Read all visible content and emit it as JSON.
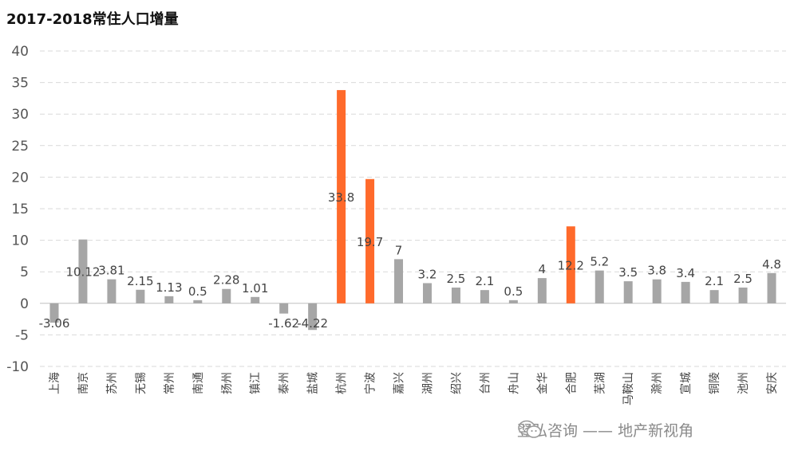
{
  "chart_data": {
    "type": "bar",
    "title": "2017-2018常住人口增量",
    "categories": [
      "上海",
      "南京",
      "苏州",
      "无锡",
      "常州",
      "南通",
      "扬州",
      "镇江",
      "泰州",
      "盐城",
      "杭州",
      "宁波",
      "嘉兴",
      "湖州",
      "绍兴",
      "台州",
      "舟山",
      "金华",
      "合肥",
      "芜湖",
      "马鞍山",
      "滁州",
      "宣城",
      "铜陵",
      "池州",
      "安庆"
    ],
    "values": [
      -3.06,
      10.12,
      3.81,
      2.15,
      1.13,
      0.5,
      2.28,
      1.01,
      -1.62,
      -4.22,
      33.8,
      19.7,
      7,
      3.2,
      2.5,
      2.1,
      0.5,
      4,
      12.2,
      5.2,
      3.5,
      3.8,
      3.4,
      2.1,
      2.5,
      4.8
    ],
    "value_labels": [
      "-3.06",
      "10.12",
      "3.81",
      "2.15",
      "1.13",
      "0.5",
      "2.28",
      "1.01",
      "-1.62",
      "-4.22",
      "33.8",
      "19.7",
      "7",
      "3.2",
      "2.5",
      "2.1",
      "0.5",
      "4",
      "12.2",
      "5.2",
      "3.5",
      "3.8",
      "3.4",
      "2.1",
      "2.5",
      "4.8"
    ],
    "highlight": [
      "杭州",
      "宁波",
      "合肥"
    ],
    "colors": {
      "default": "#a6a6a6",
      "highlight": "#ff6a2b"
    },
    "ylim": [
      -10,
      40
    ],
    "yticks": [
      -10,
      -5,
      0,
      5,
      10,
      15,
      20,
      25,
      30,
      35,
      40
    ],
    "grid": true,
    "legend": "none"
  },
  "watermark": {
    "text": "翌弘咨询 —— 地产新视角",
    "icon": "wechat-icon"
  }
}
